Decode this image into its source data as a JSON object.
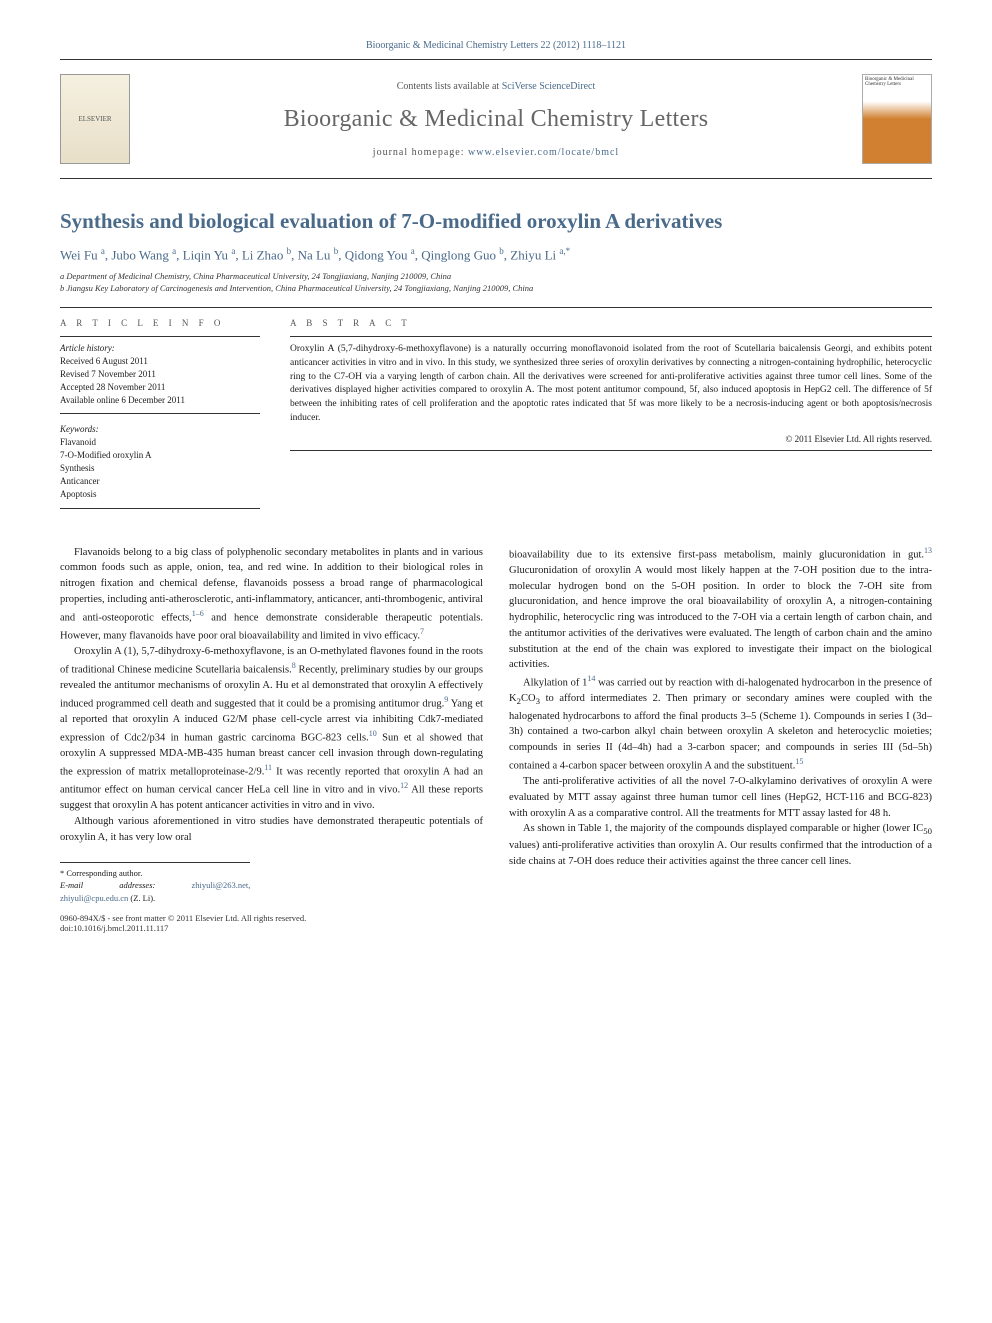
{
  "top_citation": "Bioorganic & Medicinal Chemistry Letters 22 (2012) 1118–1121",
  "masthead": {
    "contents_prefix": "Contents lists available at ",
    "contents_link": "SciVerse ScienceDirect",
    "journal": "Bioorganic & Medicinal Chemistry Letters",
    "homepage_prefix": "journal homepage: ",
    "homepage_url": "www.elsevier.com/locate/bmcl",
    "publisher_logo_text": "ELSEVIER",
    "cover_title": "Bioorganic & Medicinal Chemistry Letters"
  },
  "article": {
    "title": "Synthesis and biological evaluation of 7-O-modified oroxylin A derivatives",
    "authors_html": "Wei Fu <sup>a</sup>, Jubo Wang <sup>a</sup>, Liqin Yu <sup>a</sup>, Li Zhao <sup>b</sup>, Na Lu <sup>b</sup>, Qidong You <sup>a</sup>, Qinglong Guo <sup>b</sup>, Zhiyu Li <sup>a,*</sup>",
    "affiliations": [
      "a Department of Medicinal Chemistry, China Pharmaceutical University, 24 Tongjiaxiang, Nanjing 210009, China",
      "b Jiangsu Key Laboratory of Carcinogenesis and Intervention, China Pharmaceutical University, 24 Tongjiaxiang, Nanjing 210009, China"
    ]
  },
  "info": {
    "heading_info": "A R T I C L E   I N F O",
    "heading_abstract": "A B S T R A C T",
    "history_label": "Article history:",
    "history": [
      "Received 6 August 2011",
      "Revised 7 November 2011",
      "Accepted 28 November 2011",
      "Available online 6 December 2011"
    ],
    "keywords_label": "Keywords:",
    "keywords": [
      "Flavanoid",
      "7-O-Modified oroxylin A",
      "Synthesis",
      "Anticancer",
      "Apoptosis"
    ]
  },
  "abstract": {
    "text": "Oroxylin A (5,7-dihydroxy-6-methoxyflavone) is a naturally occurring monoflavonoid isolated from the root of Scutellaria baicalensis Georgi, and exhibits potent anticancer activities in vitro and in vivo. In this study, we synthesized three series of oroxylin derivatives by connecting a nitrogen-containing hydrophilic, heterocyclic ring to the C7-OH via a varying length of carbon chain. All the derivatives were screened for anti-proliferative activities against three tumor cell lines. Some of the derivatives displayed higher activities compared to oroxylin A. The most potent antitumor compound, 5f, also induced apoptosis in HepG2 cell. The difference of 5f between the inhibiting rates of cell proliferation and the apoptotic rates indicated that 5f was more likely to be a necrosis-inducing agent or both apoptosis/necrosis inducer.",
    "copyright": "© 2011 Elsevier Ltd. All rights reserved."
  },
  "body": {
    "col1": [
      "Flavanoids belong to a big class of polyphenolic secondary metabolites in plants and in various common foods such as apple, onion, tea, and red wine. In addition to their biological roles in nitrogen fixation and chemical defense, flavanoids possess a broad range of pharmacological properties, including anti-atherosclerotic, anti-inflammatory, anticancer, anti-thrombogenic, antiviral and anti-osteoporotic effects,<sup>1–6</sup> and hence demonstrate considerable therapeutic potentials. However, many flavanoids have poor oral bioavailability and limited in vivo efficacy.<sup>7</sup>",
      "Oroxylin A (1), 5,7-dihydroxy-6-methoxyflavone, is an O-methylated flavones found in the roots of traditional Chinese medicine Scutellaria baicalensis.<sup>8</sup> Recently, preliminary studies by our groups revealed the antitumor mechanisms of oroxylin A. Hu et al demonstrated that oroxylin A effectively induced programmed cell death and suggested that it could be a promising antitumor drug.<sup>9</sup> Yang et al reported that oroxylin A induced G2/M phase cell-cycle arrest via inhibiting Cdk7-mediated expression of Cdc2/p34 in human gastric carcinoma BGC-823 cells.<sup>10</sup> Sun et al showed that oroxylin A suppressed MDA-MB-435 human breast cancer cell invasion through down-regulating the expression of matrix metalloproteinase-2/9.<sup>11</sup> It was recently reported that oroxylin A had an antitumor effect on human cervical cancer HeLa cell line in vitro and in vivo.<sup>12</sup> All these reports suggest that oroxylin A has potent anticancer activities in vitro and in vivo.",
      "Although various aforementioned in vitro studies have demonstrated therapeutic potentials of oroxylin A, it has very low oral"
    ],
    "col2": [
      "bioavailability due to its extensive first-pass metabolism, mainly glucuronidation in gut.<sup>13</sup> Glucuronidation of oroxylin A would most likely happen at the 7-OH position due to the intra-molecular hydrogen bond on the 5-OH position. In order to block the 7-OH site from glucuronidation, and hence improve the oral bioavailability of oroxylin A, a nitrogen-containing hydrophilic, heterocyclic ring was introduced to the 7-OH via a certain length of carbon chain, and the antitumor activities of the derivatives were evaluated. The length of carbon chain and the amino substitution at the end of the chain was explored to investigate their impact on the biological activities.",
      "Alkylation of 1<sup>14</sup> was carried out by reaction with di-halogenated hydrocarbon in the presence of K<sub>2</sub>CO<sub>3</sub> to afford intermediates 2. Then primary or secondary amines were coupled with the halogenated hydrocarbons to afford the final products 3–5 (Scheme 1). Compounds in series I (3d–3h) contained a two-carbon alkyl chain between oroxylin A skeleton and heterocyclic moieties; compounds in series II (4d–4h) had a 3-carbon spacer; and compounds in series III (5d–5h) contained a 4-carbon spacer between oroxylin A and the substituent.<sup>15</sup>",
      "The anti-proliferative activities of all the novel 7-O-alkylamino derivatives of oroxylin A were evaluated by MTT assay against three human tumor cell lines (HepG2, HCT-116 and BCG-823) with oroxylin A as a comparative control. All the treatments for MTT assay lasted for 48 h.",
      "As shown in Table 1, the majority of the compounds displayed comparable or higher (lower IC<sub>50</sub> values) anti-proliferative activities than oroxylin A. Our results confirmed that the introduction of a side chains at 7-OH does reduce their activities against the three cancer cell lines."
    ]
  },
  "footnote": {
    "corr_label": "* Corresponding author.",
    "email_label": "E-mail addresses: ",
    "emails": "zhiyuli@263.net, zhiyuli@cpu.edu.cn",
    "email_suffix": " (Z. Li)."
  },
  "footer": {
    "left1": "0960-894X/$ - see front matter © 2011 Elsevier Ltd. All rights reserved.",
    "left2": "doi:10.1016/j.bmcl.2011.11.117"
  }
}
